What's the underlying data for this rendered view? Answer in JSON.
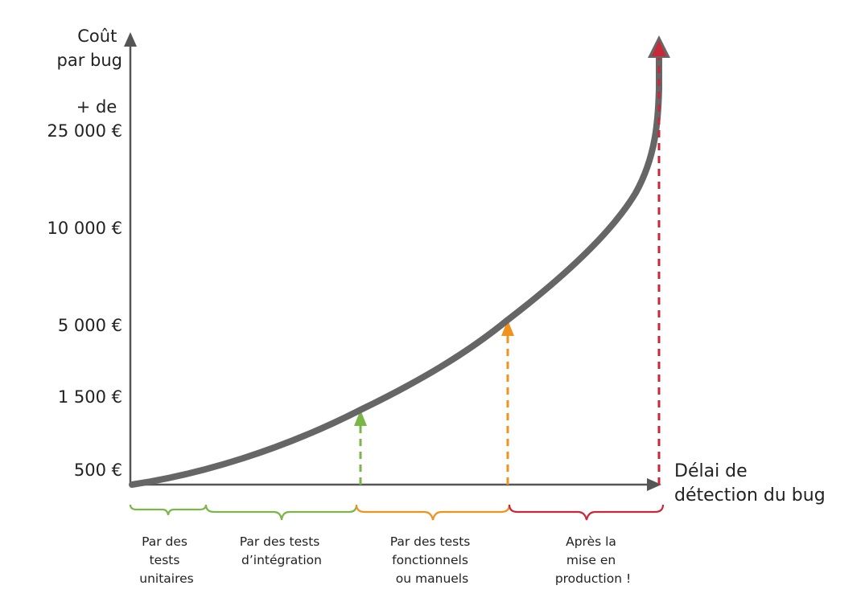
{
  "y_axis": {
    "title_lines": [
      "Coût",
      "par bug"
    ],
    "ticks": [
      {
        "lines": [
          "+ de",
          "25 000 €"
        ]
      },
      {
        "lines": [
          "10 000 €"
        ]
      },
      {
        "lines": [
          "5 000 €"
        ]
      },
      {
        "lines": [
          "1 500 €"
        ]
      },
      {
        "lines": [
          "500 €"
        ]
      }
    ]
  },
  "x_axis": {
    "title_lines": [
      "Délai de",
      "détection du bug"
    ]
  },
  "phases": [
    {
      "id": "unit",
      "lines": [
        "Par des",
        "tests",
        "unitaires"
      ],
      "color": "#7ab648"
    },
    {
      "id": "integration",
      "lines": [
        "Par des tests",
        "d’intégration"
      ],
      "color": "#7ab648"
    },
    {
      "id": "functional",
      "lines": [
        "Par des tests",
        "fonctionnels",
        "ou manuels"
      ],
      "color": "#f0921e"
    },
    {
      "id": "production",
      "lines": [
        "Après la",
        "mise en",
        "production !"
      ],
      "color": "#c8283a"
    }
  ],
  "colors": {
    "axis": "#555555",
    "curve": "#666666",
    "green": "#7ab648",
    "orange": "#f0921e",
    "red": "#c8283a"
  }
}
